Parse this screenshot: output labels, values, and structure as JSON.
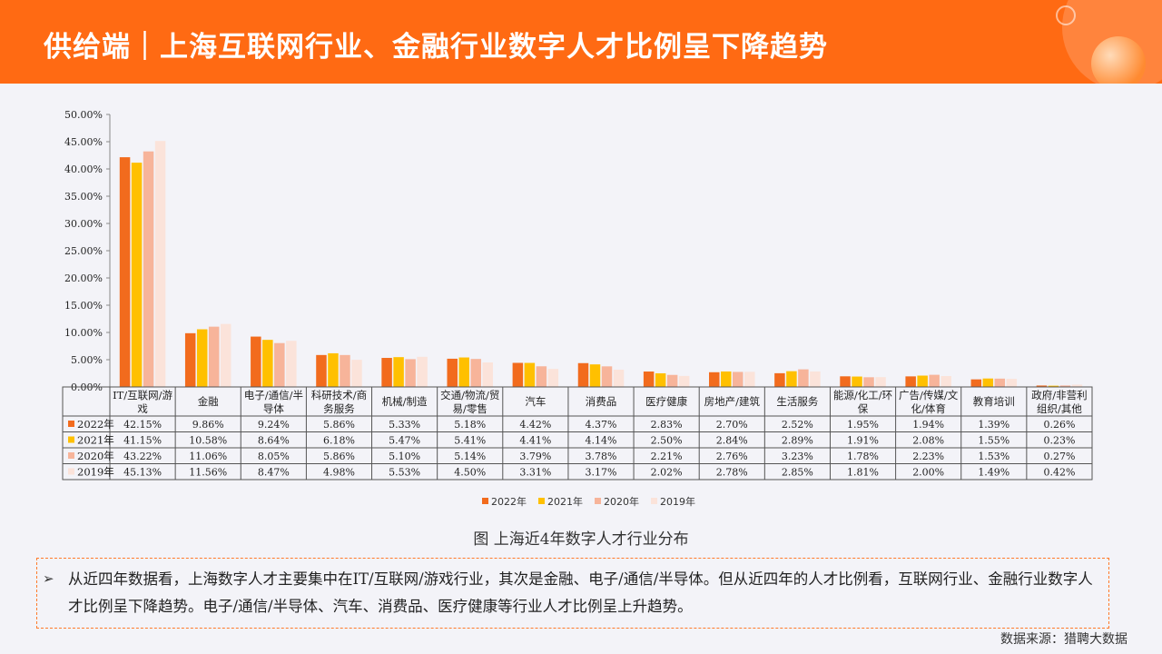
{
  "header": {
    "title": "供给端｜上海互联网行业、金融行业数字人才比例呈下降趋势"
  },
  "chart_data": {
    "type": "bar",
    "title": "",
    "xlabel": "",
    "ylabel": "",
    "ylim": [
      0,
      50
    ],
    "yticks": [
      "0.00%",
      "5.00%",
      "10.00%",
      "15.00%",
      "20.00%",
      "25.00%",
      "30.00%",
      "35.00%",
      "40.00%",
      "45.00%",
      "50.00%"
    ],
    "categories": [
      [
        "IT/互联网/游",
        "戏"
      ],
      [
        "金融"
      ],
      [
        "电子/通信/半",
        "导体"
      ],
      [
        "科研技术/商",
        "务服务"
      ],
      [
        "机械/制造"
      ],
      [
        "交通/物流/贸",
        "易/零售"
      ],
      [
        "汽车"
      ],
      [
        "消费品"
      ],
      [
        "医疗健康"
      ],
      [
        "房地产/建筑"
      ],
      [
        "生活服务"
      ],
      [
        "能源/化工/环",
        "保"
      ],
      [
        "广告/传媒/文",
        "化/体育"
      ],
      [
        "教育培训"
      ],
      [
        "政府/非营利",
        "组织/其他"
      ]
    ],
    "series": [
      {
        "name": "2022年",
        "color": "#f26b1d",
        "values": [
          42.15,
          9.86,
          9.24,
          5.86,
          5.33,
          5.18,
          4.42,
          4.37,
          2.83,
          2.7,
          2.52,
          1.95,
          1.94,
          1.39,
          0.26
        ],
        "labels": [
          "42.15%",
          "9.86%",
          "9.24%",
          "5.86%",
          "5.33%",
          "5.18%",
          "4.42%",
          "4.37%",
          "2.83%",
          "2.70%",
          "2.52%",
          "1.95%",
          "1.94%",
          "1.39%",
          "0.26%"
        ]
      },
      {
        "name": "2021年",
        "color": "#ffc000",
        "values": [
          41.15,
          10.58,
          8.64,
          6.18,
          5.47,
          5.41,
          4.41,
          4.14,
          2.5,
          2.84,
          2.89,
          1.91,
          2.08,
          1.55,
          0.23
        ],
        "labels": [
          "41.15%",
          "10.58%",
          "8.64%",
          "6.18%",
          "5.47%",
          "5.41%",
          "4.41%",
          "4.14%",
          "2.50%",
          "2.84%",
          "2.89%",
          "1.91%",
          "2.08%",
          "1.55%",
          "0.23%"
        ]
      },
      {
        "name": "2020年",
        "color": "#f7b49a",
        "values": [
          43.22,
          11.06,
          8.05,
          5.86,
          5.1,
          5.14,
          3.79,
          3.78,
          2.21,
          2.76,
          3.23,
          1.78,
          2.23,
          1.53,
          0.27
        ],
        "labels": [
          "43.22%",
          "11.06%",
          "8.05%",
          "5.86%",
          "5.10%",
          "5.14%",
          "3.79%",
          "3.78%",
          "2.21%",
          "2.76%",
          "3.23%",
          "1.78%",
          "2.23%",
          "1.53%",
          "0.27%"
        ]
      },
      {
        "name": "2019年",
        "color": "#fbe3da",
        "values": [
          45.13,
          11.56,
          8.47,
          4.98,
          5.53,
          4.5,
          3.31,
          3.17,
          2.02,
          2.78,
          2.85,
          1.81,
          2.0,
          1.49,
          0.42
        ],
        "labels": [
          "45.13%",
          "11.56%",
          "8.47%",
          "4.98%",
          "5.53%",
          "4.50%",
          "3.31%",
          "3.17%",
          "2.02%",
          "2.78%",
          "2.85%",
          "1.81%",
          "2.00%",
          "1.49%",
          "0.42%"
        ]
      }
    ],
    "legend": "bottom"
  },
  "caption": "图 上海近4年数字人才行业分布",
  "note": {
    "arrow": "➢",
    "text": "从近四年数据看，上海数字人才主要集中在IT/互联网/游戏行业，其次是金融、电子/通信/半导体。但从近四年的人才比例看，互联网行业、金融行业数字人才比例呈下降趋势。电子/通信/半导体、汽车、消费品、医疗健康等行业人才比例呈上升趋势。"
  },
  "source": "数据来源：猎聘大数据"
}
